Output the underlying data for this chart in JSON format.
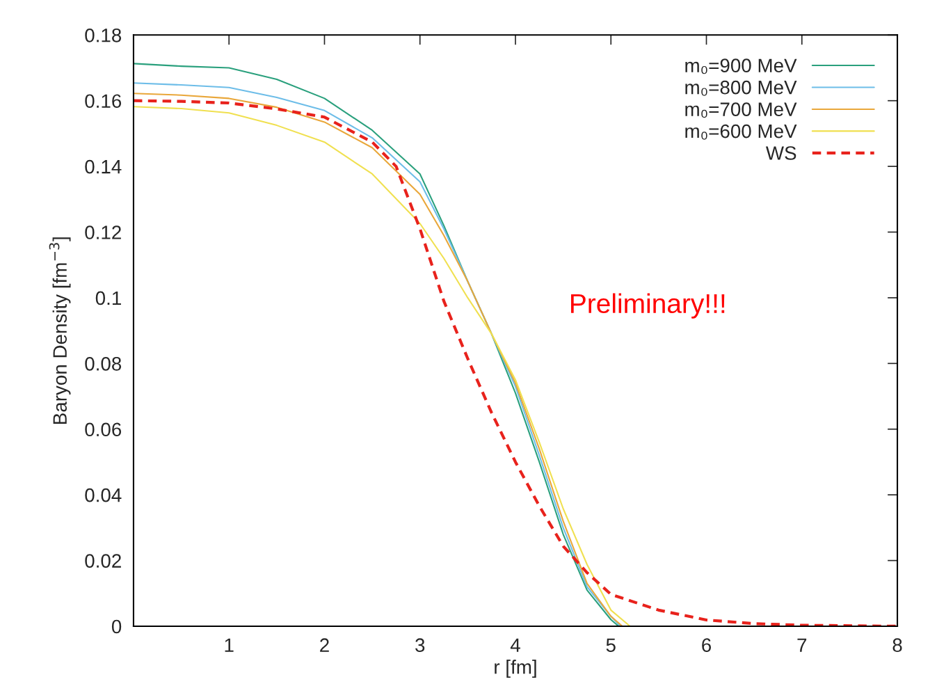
{
  "chart_data": {
    "type": "line",
    "xlabel": "r [fm]",
    "ylabel": "Baryon Density [fm$^{−3}$]",
    "xlim": [
      0,
      8
    ],
    "xticks": [
      1,
      2,
      3,
      4,
      5,
      6,
      7,
      8
    ],
    "ylim": [
      0,
      0.18
    ],
    "yticks": [
      0,
      0.02,
      0.04,
      0.06,
      0.08,
      0.1,
      0.12,
      0.14,
      0.16,
      0.18
    ],
    "grid": false,
    "legend": "top right",
    "marker": "none",
    "annotations": [
      "Preliminary!!!"
    ],
    "series": [
      {
        "name": "m₀=900 MeV",
        "color": "#2aa07d",
        "line_style": "solid",
        "x": [
          0,
          0.5,
          1,
          1.5,
          2,
          2.5,
          3,
          3.25,
          3.5,
          3.75,
          4,
          4.25,
          4.5,
          4.75,
          5,
          5.08
        ],
        "values": [
          0.1713,
          0.1705,
          0.17,
          0.1665,
          0.1607,
          0.151,
          0.1377,
          0.122,
          0.105,
          0.089,
          0.071,
          0.05,
          0.028,
          0.011,
          0.002,
          0
        ]
      },
      {
        "name": "m₀=800 MeV",
        "color": "#6dbde8",
        "line_style": "solid",
        "x": [
          0,
          0.5,
          1,
          1.5,
          2,
          2.5,
          3,
          3.25,
          3.5,
          3.75,
          4,
          4.25,
          4.5,
          4.75,
          5,
          5.1
        ],
        "values": [
          0.1654,
          0.1648,
          0.164,
          0.161,
          0.157,
          0.1487,
          0.1353,
          0.121,
          0.105,
          0.089,
          0.073,
          0.052,
          0.03,
          0.012,
          0.003,
          0
        ]
      },
      {
        "name": "m₀=700 MeV",
        "color": "#e9a73a",
        "line_style": "solid",
        "x": [
          0,
          0.5,
          1,
          1.5,
          2,
          2.5,
          3,
          3.25,
          3.5,
          3.75,
          4,
          4.25,
          4.5,
          4.75,
          5,
          5.12
        ],
        "values": [
          0.1622,
          0.1617,
          0.1607,
          0.158,
          0.1535,
          0.1457,
          0.1315,
          0.119,
          0.105,
          0.089,
          0.074,
          0.054,
          0.032,
          0.013,
          0.003,
          0
        ]
      },
      {
        "name": "m₀=600 MeV",
        "color": "#f0e050",
        "line_style": "solid",
        "x": [
          0,
          0.5,
          1,
          1.5,
          2,
          2.5,
          3,
          3.25,
          3.5,
          3.75,
          4,
          4.25,
          4.5,
          4.75,
          5,
          5.2
        ],
        "values": [
          0.1582,
          0.1576,
          0.1563,
          0.1525,
          0.1474,
          0.1377,
          0.1226,
          0.112,
          0.1,
          0.089,
          0.075,
          0.056,
          0.0358,
          0.0188,
          0.0049,
          0
        ]
      },
      {
        "name": "WS",
        "color": "#e8221c",
        "line_style": "dashed",
        "x": [
          0,
          0.5,
          1,
          1.5,
          2,
          2.5,
          2.75,
          3,
          3.25,
          3.5,
          3.75,
          4,
          4.25,
          4.5,
          4.75,
          5,
          5.5,
          6,
          6.5,
          7,
          8
        ],
        "values": [
          0.16,
          0.1598,
          0.1593,
          0.1575,
          0.155,
          0.1474,
          0.14,
          0.121,
          0.099,
          0.0815,
          0.065,
          0.05,
          0.0366,
          0.0244,
          0.0163,
          0.0097,
          0.0049,
          0.0019,
          0.0008,
          0.0003,
          0
        ]
      }
    ]
  }
}
